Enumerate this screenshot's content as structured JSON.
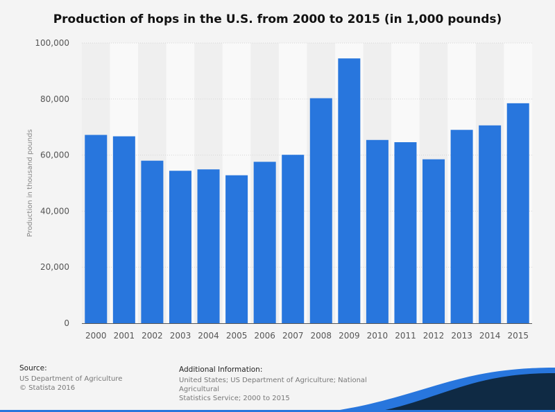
{
  "chart_data": {
    "type": "bar",
    "title": "Production of hops in the U.S. from 2000 to 2015 (in 1,000 pounds)",
    "xlabel": "",
    "ylabel": "Production in thousand pounds",
    "categories": [
      "2000",
      "2001",
      "2002",
      "2003",
      "2004",
      "2005",
      "2006",
      "2007",
      "2008",
      "2009",
      "2010",
      "2011",
      "2012",
      "2013",
      "2014",
      "2015"
    ],
    "values": [
      67200,
      66700,
      58000,
      54400,
      54900,
      52800,
      57600,
      60100,
      80300,
      94500,
      65400,
      64600,
      58500,
      69000,
      70600,
      78500
    ],
    "ylim": [
      0,
      100000
    ],
    "yticks": [
      0,
      20000,
      40000,
      60000,
      80000,
      100000
    ],
    "ytick_labels": [
      "0",
      "20,000",
      "40,000",
      "60,000",
      "80,000",
      "100,000"
    ],
    "grid": true,
    "bar_color": "#2876dd"
  },
  "footer": {
    "source_label": "Source:",
    "source_lines": [
      "US Department of Agriculture",
      "© Statista 2016"
    ],
    "info_label": "Additional Information:",
    "info_lines": [
      "United States; US Department of Agriculture; National Agricultural",
      "Statistics Service; 2000 to 2015"
    ]
  },
  "colors": {
    "wave_dark": "#0f2a44",
    "wave_accent": "#2876dd"
  }
}
